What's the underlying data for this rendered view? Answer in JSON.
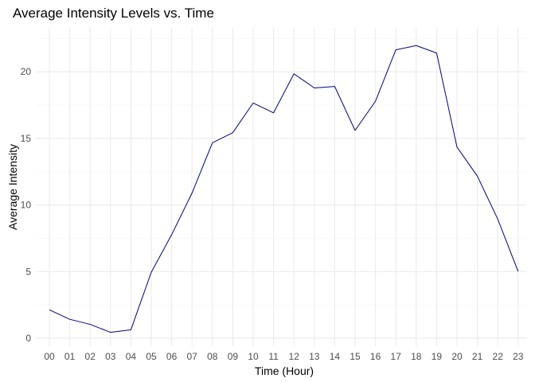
{
  "chart_data": {
    "type": "line",
    "title": "Average Intensity Levels vs. Time",
    "xlabel": "Time (Hour)",
    "ylabel": "Average Intensity",
    "categories": [
      "00",
      "01",
      "02",
      "03",
      "04",
      "05",
      "06",
      "07",
      "08",
      "09",
      "10",
      "11",
      "12",
      "13",
      "14",
      "15",
      "16",
      "17",
      "18",
      "19",
      "20",
      "21",
      "22",
      "23"
    ],
    "series": [
      {
        "values": [
          2.13,
          1.42,
          1.04,
          0.44,
          0.63,
          4.95,
          7.77,
          10.9,
          14.67,
          15.43,
          17.66,
          16.92,
          19.85,
          18.79,
          18.9,
          15.6,
          17.79,
          21.65,
          21.97,
          21.41,
          14.35,
          12.17,
          8.94,
          5.01
        ]
      }
    ],
    "ylim": [
      -0.6,
      23.3
    ],
    "yticks": [
      0,
      5,
      10,
      15,
      20
    ],
    "yticks_labels": [
      "0",
      "5",
      "10",
      "15",
      "20"
    ],
    "grid": true,
    "colors": {
      "line": "#000080",
      "grid": "#ebebeb"
    }
  }
}
